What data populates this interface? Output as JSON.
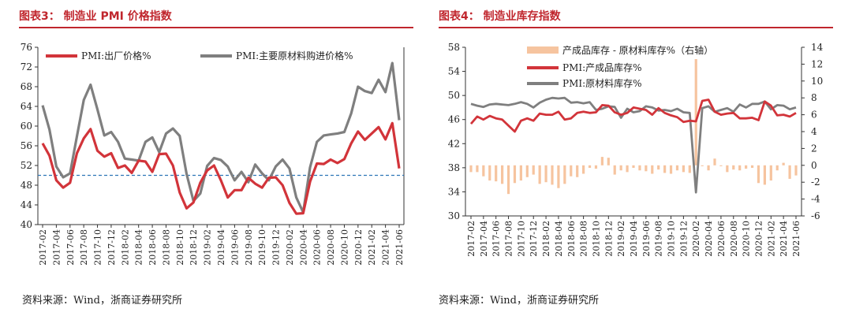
{
  "left_panel": {
    "title": "图表3： 制造业 PMI 价格指数",
    "source": "资料来源：Wind，浙商证券研究所"
  },
  "right_panel": {
    "title": "图表4： 制造业库存指数",
    "source": "资料来源：Wind，浙商证券研究所"
  },
  "colors": {
    "red": "#d2343a",
    "gray": "#7f7f7f",
    "peach": "#f6c49f",
    "ref": "#2e75b6",
    "title_red": "#c0262d"
  },
  "chart_data": [
    {
      "type": "line",
      "title": "制造业 PMI 价格指数",
      "categories": [
        "2017-02",
        "2017-03",
        "2017-04",
        "2017-05",
        "2017-06",
        "2017-07",
        "2017-08",
        "2017-09",
        "2017-10",
        "2017-11",
        "2017-12",
        "2018-01",
        "2018-02",
        "2018-03",
        "2018-04",
        "2018-05",
        "2018-06",
        "2018-07",
        "2018-08",
        "2018-09",
        "2018-10",
        "2018-11",
        "2018-12",
        "2019-01",
        "2019-02",
        "2019-03",
        "2019-04",
        "2019-05",
        "2019-06",
        "2019-07",
        "2019-08",
        "2019-09",
        "2019-10",
        "2019-11",
        "2019-12",
        "2020-01",
        "2020-02",
        "2020-03",
        "2020-04",
        "2020-05",
        "2020-06",
        "2020-07",
        "2020-08",
        "2020-09",
        "2020-10",
        "2020-11",
        "2020-12",
        "2021-01",
        "2021-02",
        "2021-03",
        "2021-04",
        "2021-05",
        "2021-06"
      ],
      "tick_labels": [
        "2017-02",
        "2017-04",
        "2017-06",
        "2017-08",
        "2017-10",
        "2017-12",
        "2018-02",
        "2018-04",
        "2018-06",
        "2018-08",
        "2018-10",
        "2018-12",
        "2019-02",
        "2019-04",
        "2019-06",
        "2019-08",
        "2019-10",
        "2019-12",
        "2020-02",
        "2020-04",
        "2020-06",
        "2020-08",
        "2020-10",
        "2020-12",
        "2021-02",
        "2021-04",
        "2021-06"
      ],
      "series": [
        {
          "name": "PMI:出厂价格%",
          "color": "#d2343a",
          "values": [
            56.5,
            54.0,
            49.0,
            47.5,
            48.5,
            54.5,
            57.5,
            59.4,
            55.0,
            53.8,
            54.5,
            51.5,
            52.0,
            50.5,
            53.0,
            52.8,
            50.7,
            54.3,
            54.4,
            52.0,
            46.5,
            43.3,
            44.5,
            48.5,
            51.0,
            52.0,
            49.0,
            45.5,
            47.0,
            47.0,
            49.5,
            48.3,
            47.5,
            49.5,
            49.6,
            48.0,
            44.4,
            42.2,
            42.3,
            48.7,
            52.4,
            52.3,
            53.2,
            52.5,
            53.3,
            56.5,
            58.9,
            57.2,
            58.5,
            59.8,
            57.3,
            60.6,
            51.4
          ]
        },
        {
          "name": "PMI:主要原材料购进价格%",
          "color": "#7f7f7f",
          "values": [
            64.2,
            59.3,
            51.8,
            49.6,
            50.4,
            57.9,
            65.3,
            68.4,
            63.4,
            58.1,
            58.8,
            56.8,
            53.4,
            53.2,
            53.0,
            56.8,
            57.7,
            54.7,
            58.5,
            59.5,
            58.0,
            50.3,
            44.8,
            46.3,
            51.9,
            53.5,
            53.1,
            51.8,
            49.0,
            50.7,
            48.6,
            52.2,
            50.4,
            49.0,
            51.8,
            53.2,
            51.4,
            45.5,
            42.5,
            51.6,
            56.8,
            58.1,
            58.3,
            58.5,
            58.8,
            62.6,
            68.0,
            67.1,
            66.7,
            69.4,
            66.9,
            72.8,
            61.2
          ]
        }
      ],
      "reference_line": {
        "value": 50
      },
      "ylim": [
        40,
        76
      ],
      "yticks": [
        40,
        44,
        48,
        52,
        56,
        60,
        64,
        68,
        72,
        76
      ],
      "legend": "top"
    },
    {
      "type": "line_bar",
      "title": "制造业库存指数",
      "categories": [
        "2017-02",
        "2017-03",
        "2017-04",
        "2017-05",
        "2017-06",
        "2017-07",
        "2017-08",
        "2017-09",
        "2017-10",
        "2017-11",
        "2017-12",
        "2018-01",
        "2018-02",
        "2018-03",
        "2018-04",
        "2018-05",
        "2018-06",
        "2018-07",
        "2018-08",
        "2018-09",
        "2018-10",
        "2018-11",
        "2018-12",
        "2019-01",
        "2019-02",
        "2019-03",
        "2019-04",
        "2019-05",
        "2019-06",
        "2019-07",
        "2019-08",
        "2019-09",
        "2019-10",
        "2019-11",
        "2019-12",
        "2020-01",
        "2020-02",
        "2020-03",
        "2020-04",
        "2020-05",
        "2020-06",
        "2020-07",
        "2020-08",
        "2020-09",
        "2020-10",
        "2020-11",
        "2020-12",
        "2021-01",
        "2021-02",
        "2021-03",
        "2021-04",
        "2021-05",
        "2021-06"
      ],
      "tick_labels": [
        "2017-02",
        "2017-04",
        "2017-06",
        "2017-08",
        "2017-10",
        "2017-12",
        "2018-02",
        "2018-04",
        "2018-06",
        "2018-08",
        "2018-10",
        "2018-12",
        "2019-02",
        "2019-04",
        "2019-06",
        "2019-08",
        "2019-10",
        "2019-12",
        "2020-02",
        "2020-04",
        "2020-06",
        "2020-08",
        "2020-10",
        "2020-12",
        "2021-02",
        "2021-04",
        "2021-06"
      ],
      "series": [
        {
          "name": "产成品库存 - 原材料库存%（右轴）",
          "kind": "bar",
          "axis": "right",
          "color": "#f6c49f",
          "values": [
            -0.8,
            -0.8,
            -1.3,
            -1.8,
            -1.9,
            -2.2,
            -3.4,
            -2.1,
            -1.8,
            -1.4,
            -1.1,
            -2.2,
            -2.0,
            -2.3,
            -2.7,
            -2.2,
            -1.3,
            -1.4,
            -1.0,
            -0.3,
            -0.4,
            1.0,
            0.9,
            -1.1,
            -0.6,
            -0.8,
            -0.3,
            -0.6,
            -0.7,
            -1.0,
            -0.5,
            -0.9,
            -1.0,
            -0.6,
            -0.8,
            -0.9,
            12.6,
            -0.1,
            -0.6,
            0.8,
            -0.1,
            -0.8,
            -0.5,
            -0.6,
            -0.4,
            -0.3,
            -2.1,
            -2.3,
            -1.8,
            -0.6,
            0.3,
            -1.6,
            -1.2
          ]
        },
        {
          "name": "PMI:产成品库存%",
          "kind": "line",
          "axis": "left",
          "color": "#d2343a",
          "values": [
            45.3,
            46.5,
            46.0,
            46.6,
            46.2,
            46.0,
            45.0,
            44.0,
            45.8,
            46.2,
            45.8,
            47.0,
            46.8,
            46.8,
            47.3,
            46.0,
            46.2,
            47.1,
            47.3,
            47.1,
            47.2,
            48.4,
            48.3,
            47.2,
            46.8,
            47.1,
            48.0,
            47.8,
            47.6,
            46.8,
            47.9,
            47.1,
            46.7,
            46.4,
            45.6,
            45.8,
            45.7,
            49.1,
            49.3,
            47.3,
            46.8,
            47.0,
            47.1,
            46.2,
            46.2,
            46.3,
            45.9,
            49.0,
            48.3,
            46.7,
            46.8,
            46.5,
            47.1
          ]
        },
        {
          "name": "PMI:原材料库存%",
          "kind": "line",
          "axis": "left",
          "color": "#7f7f7f",
          "values": [
            48.6,
            48.3,
            48.1,
            48.5,
            48.6,
            48.5,
            48.4,
            48.6,
            48.9,
            48.6,
            48.0,
            48.8,
            49.3,
            49.6,
            49.5,
            49.6,
            48.8,
            48.9,
            48.7,
            48.9,
            47.6,
            47.8,
            48.2,
            48.1,
            46.3,
            47.8,
            47.2,
            47.4,
            48.2,
            48.0,
            47.5,
            47.6,
            47.4,
            47.8,
            47.2,
            47.1,
            33.9,
            47.9,
            48.2,
            47.3,
            47.6,
            47.9,
            47.3,
            48.5,
            48.0,
            48.6,
            48.6,
            49.0,
            47.7,
            48.4,
            48.3,
            47.7,
            48.0
          ]
        }
      ],
      "ylim_left": [
        30,
        58
      ],
      "yticks_left": [
        30,
        34,
        38,
        42,
        46,
        50,
        54,
        58
      ],
      "ylim_right": [
        -6,
        14
      ],
      "yticks_right": [
        -6,
        -4,
        -2,
        0,
        2,
        4,
        6,
        8,
        10,
        12,
        14
      ],
      "legend": "top-left"
    }
  ]
}
